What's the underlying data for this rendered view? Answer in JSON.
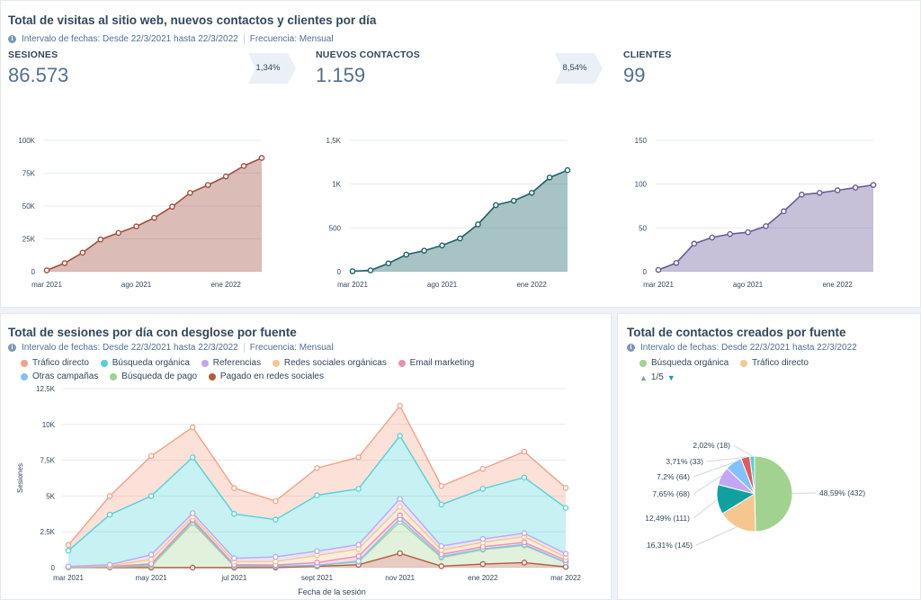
{
  "top": {
    "title": "Total de visitas al sitio web, nuevos contactos y clientes por día",
    "meta_range": "Intervalo de fechas: Desde 22/3/2021 hasta 22/3/2022",
    "meta_freq": "Frecuencia: Mensual",
    "kpis": [
      {
        "label": "SESIONES",
        "value": "86.573",
        "change": "1,34%"
      },
      {
        "label": "NUEVOS CONTACTOS",
        "value": "1.159",
        "change": "8,54%"
      },
      {
        "label": "CLIENTES",
        "value": "99"
      }
    ]
  },
  "sessions_card": {
    "title": "Total de sesiones por día con desglose por fuente",
    "meta_range": "Intervalo de fechas: Desde 22/3/2021 hasta 22/3/2022",
    "meta_freq": "Frecuencia: Mensual",
    "legend": [
      {
        "label": "Tráfico directo",
        "color": "#f2a285"
      },
      {
        "label": "Búsqueda orgánica",
        "color": "#51d3d9"
      },
      {
        "label": "Referencias",
        "color": "#bda9ea"
      },
      {
        "label": "Redes sociales orgánicas",
        "color": "#f5c78e"
      },
      {
        "label": "Email marketing",
        "color": "#ea90b1"
      },
      {
        "label": "Otras campañas",
        "color": "#81c1fd"
      },
      {
        "label": "Búsqueda de pago",
        "color": "#a2d28f"
      },
      {
        "label": "Pagado en redes sociales",
        "color": "#b35a3e"
      }
    ]
  },
  "contacts_card": {
    "title": "Total de contactos creados por fuente",
    "meta_range": "Intervalo de fechas: Desde 22/3/2021 hasta 22/3/2022",
    "legend": [
      {
        "label": "Búsqueda orgánica",
        "color": "#a2d28f"
      },
      {
        "label": "Tráfico directo",
        "color": "#f5c78e"
      }
    ],
    "pager": "1/5"
  },
  "chart_data": [
    {
      "type": "area",
      "id": "sesiones",
      "title": "SESIONES",
      "color": "#a34f3e",
      "x_tick_labels": [
        "mar 2021",
        "ago 2021",
        "ene 2022"
      ],
      "x_tick_index": [
        0,
        5,
        10
      ],
      "y_ticks": [
        "0",
        "25K",
        "50K",
        "75K",
        "100K"
      ],
      "ylim": [
        0,
        100000
      ],
      "values": [
        1000,
        6500,
        14500,
        24500,
        29500,
        34500,
        41000,
        49500,
        60000,
        66000,
        72500,
        80500,
        86573
      ]
    },
    {
      "type": "area",
      "id": "contactos",
      "title": "NUEVOS CONTACTOS",
      "color": "#1b6168",
      "x_tick_labels": [
        "mar 2021",
        "ago 2021",
        "ene 2022"
      ],
      "x_tick_index": [
        0,
        5,
        10
      ],
      "y_ticks": [
        "0",
        "500",
        "1K",
        "1,5K"
      ],
      "ylim": [
        0,
        1500
      ],
      "values": [
        5,
        15,
        95,
        195,
        240,
        300,
        380,
        540,
        760,
        810,
        900,
        1075,
        1159
      ]
    },
    {
      "type": "area",
      "id": "clientes",
      "title": "CLIENTES",
      "color": "#6a5a9a",
      "x_tick_labels": [
        "mar 2021",
        "ago 2021",
        "ene 2022"
      ],
      "x_tick_index": [
        0,
        5,
        10
      ],
      "y_ticks": [
        "0",
        "50",
        "100",
        "150"
      ],
      "ylim": [
        0,
        150
      ],
      "values": [
        2,
        10,
        32,
        39,
        43,
        45,
        52,
        69,
        88,
        90,
        93,
        96,
        99
      ]
    },
    {
      "type": "area",
      "id": "sesiones_fuente",
      "stacked": true,
      "xlabel": "Fecha de la sesión",
      "ylabel": "Sesiones",
      "x_tick_labels": [
        "mar 2021",
        "may 2021",
        "jul 2021",
        "sept 2021",
        "nov 2021",
        "ene 2022",
        "mar 2022"
      ],
      "x_tick_index": [
        0,
        2,
        4,
        6,
        8,
        10,
        12
      ],
      "y_ticks": [
        "0",
        "2,5K",
        "5K",
        "7,5K",
        "10K",
        "12,5K"
      ],
      "ylim": [
        0,
        12500
      ],
      "series": [
        {
          "name": "Pagado en redes sociales",
          "color": "#b35a3e",
          "values": [
            0,
            0,
            0,
            0,
            0,
            0,
            100,
            200,
            1000,
            100,
            250,
            350,
            50
          ]
        },
        {
          "name": "Búsqueda de pago",
          "color": "#a2d28f",
          "values": [
            0,
            30,
            100,
            3100,
            100,
            80,
            50,
            200,
            2200,
            600,
            1000,
            1200,
            300
          ]
        },
        {
          "name": "Otras campañas",
          "color": "#81c1fd",
          "values": [
            20,
            20,
            100,
            150,
            30,
            20,
            20,
            50,
            200,
            80,
            60,
            60,
            20
          ]
        },
        {
          "name": "Email marketing",
          "color": "#ea90b1",
          "values": [
            20,
            30,
            70,
            100,
            80,
            80,
            180,
            350,
            250,
            150,
            150,
            150,
            150
          ]
        },
        {
          "name": "Redes sociales orgánicas",
          "color": "#f5c78e",
          "values": [
            20,
            40,
            300,
            200,
            200,
            250,
            500,
            500,
            600,
            300,
            300,
            400,
            200
          ]
        },
        {
          "name": "Referencias",
          "color": "#bda9ea",
          "values": [
            20,
            80,
            330,
            250,
            240,
            320,
            300,
            300,
            550,
            270,
            240,
            240,
            250
          ]
        },
        {
          "name": "Búsqueda orgánica",
          "color": "#51d3d9",
          "values": [
            1100,
            3500,
            4100,
            3900,
            3100,
            2600,
            3900,
            3900,
            4400,
            2900,
            3500,
            3900,
            3200
          ]
        },
        {
          "name": "Tráfico directo",
          "color": "#f2a285",
          "values": [
            400,
            1300,
            2800,
            2100,
            1800,
            1300,
            1900,
            2200,
            2100,
            1300,
            1400,
            1800,
            1400
          ]
        }
      ]
    },
    {
      "type": "pie",
      "id": "contactos_fuente",
      "slices": [
        {
          "label": "48,59% (432)",
          "value": 432,
          "color": "#a2d28f"
        },
        {
          "label": "16,31% (145)",
          "value": 145,
          "color": "#f5c78e"
        },
        {
          "label": "12,49% (111)",
          "value": 111,
          "color": "#0fa1a0"
        },
        {
          "label": "7,65% (68)",
          "value": 68,
          "color": "#c3a7f5"
        },
        {
          "label": "7,2% (64)",
          "value": 64,
          "color": "#81c1fd"
        },
        {
          "label": "3,71% (33)",
          "value": 33,
          "color": "#e05c5c"
        },
        {
          "label": "2,02% (18)",
          "value": 18,
          "color": "#51d3d9"
        }
      ]
    }
  ]
}
